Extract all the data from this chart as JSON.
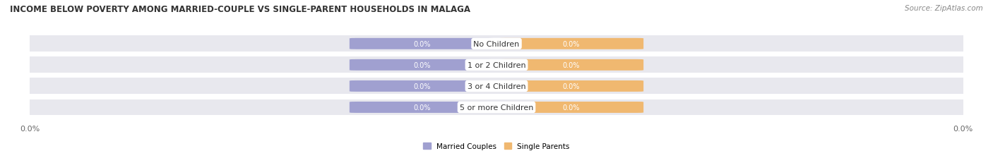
{
  "title": "INCOME BELOW POVERTY AMONG MARRIED-COUPLE VS SINGLE-PARENT HOUSEHOLDS IN MALAGA",
  "source": "Source: ZipAtlas.com",
  "categories": [
    "No Children",
    "1 or 2 Children",
    "3 or 4 Children",
    "5 or more Children"
  ],
  "married_values": [
    0.0,
    0.0,
    0.0,
    0.0
  ],
  "single_values": [
    0.0,
    0.0,
    0.0,
    0.0
  ],
  "married_color": "#a0a0d0",
  "single_color": "#f0b870",
  "label_display": "0.0%",
  "background_color": "#ffffff",
  "row_bg_color": "#e8e8ee",
  "legend_married": "Married Couples",
  "legend_single": "Single Parents",
  "title_fontsize": 8.5,
  "source_fontsize": 7.5,
  "tick_fontsize": 8,
  "label_fontsize": 7,
  "category_fontsize": 8
}
